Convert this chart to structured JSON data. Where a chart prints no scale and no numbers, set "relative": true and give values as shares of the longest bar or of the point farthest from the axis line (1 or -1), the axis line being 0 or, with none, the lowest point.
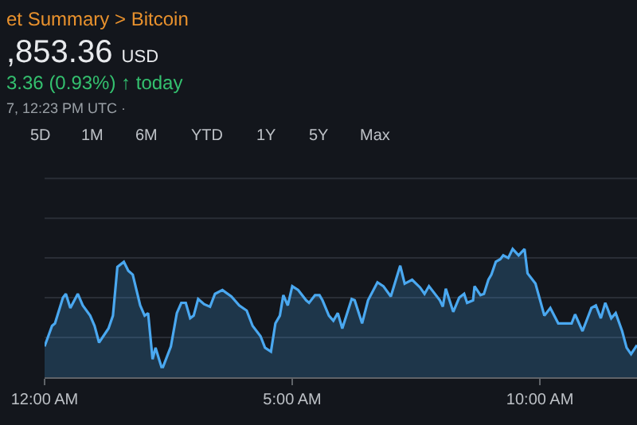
{
  "chart_data": {
    "type": "area",
    "title": "et Summary > Bitcoin",
    "relative": true,
    "annotations": [
      ",853.36 USD",
      "3.36 (0.93%) ↑ today",
      "7, 12:23 PM UTC ·",
      "5D",
      "1M",
      "6M",
      "YTD",
      "1Y",
      "5Y",
      "Max"
    ],
    "x": [
      0,
      0.15,
      0.21,
      0.37,
      0.43,
      0.52,
      0.67,
      0.77,
      0.92,
      1.01,
      1.1,
      1.29,
      1.38,
      1.47,
      1.6,
      1.69,
      1.78,
      1.93,
      2.02,
      2.09,
      2.18,
      2.24,
      2.36,
      2.39,
      2.55,
      2.67,
      2.76,
      2.85,
      2.94,
      3.01,
      3.1,
      3.22,
      3.34,
      3.44,
      3.59,
      3.77,
      3.93,
      4.08,
      4.2,
      4.36,
      4.45,
      4.57,
      4.66,
      4.75,
      4.82,
      4.91,
      5.0,
      5.12,
      5.28,
      5.34,
      5.46,
      5.55,
      5.61,
      5.74,
      5.83,
      5.92,
      6.01,
      6.2,
      6.26,
      6.41,
      6.53,
      6.72,
      6.84,
      6.99,
      7.18,
      7.27,
      7.42,
      7.58,
      7.67,
      7.76,
      7.98,
      8.04,
      8.1,
      8.25,
      8.37,
      8.47,
      8.53,
      8.65,
      8.68,
      8.8,
      8.87,
      8.96,
      9.02,
      9.11,
      9.2,
      9.26,
      9.36,
      9.45,
      9.57,
      9.69,
      9.75,
      9.91,
      10.09,
      10.21,
      10.37,
      10.64,
      10.71,
      10.86,
      11.04,
      11.13,
      11.23,
      11.32,
      11.44,
      11.53,
      11.66,
      11.75,
      11.84,
      11.96
    ],
    "series": [
      {
        "color": "#4aa8f0",
        "values": [
          0.24,
          0.4,
          0.42,
          0.62,
          0.65,
          0.54,
          0.65,
          0.56,
          0.48,
          0.4,
          0.27,
          0.38,
          0.48,
          0.86,
          0.9,
          0.83,
          0.8,
          0.56,
          0.48,
          0.5,
          0.14,
          0.23,
          0.08,
          0.08,
          0.24,
          0.5,
          0.58,
          0.58,
          0.46,
          0.48,
          0.61,
          0.57,
          0.55,
          0.65,
          0.68,
          0.63,
          0.56,
          0.52,
          0.4,
          0.32,
          0.23,
          0.2,
          0.42,
          0.48,
          0.64,
          0.56,
          0.71,
          0.68,
          0.6,
          0.58,
          0.64,
          0.64,
          0.6,
          0.48,
          0.44,
          0.5,
          0.38,
          0.61,
          0.6,
          0.42,
          0.6,
          0.74,
          0.71,
          0.63,
          0.87,
          0.73,
          0.76,
          0.7,
          0.65,
          0.71,
          0.6,
          0.55,
          0.69,
          0.51,
          0.62,
          0.65,
          0.58,
          0.6,
          0.71,
          0.64,
          0.65,
          0.76,
          0.8,
          0.9,
          0.92,
          0.95,
          0.93,
          1.0,
          0.95,
          1.0,
          0.81,
          0.73,
          0.48,
          0.54,
          0.42,
          0.42,
          0.49,
          0.36,
          0.54,
          0.56,
          0.46,
          0.58,
          0.46,
          0.5,
          0.36,
          0.23,
          0.18,
          0.25
        ]
      }
    ],
    "xlim": [
      0,
      11.96
    ],
    "xticks": [
      {
        "value": 0,
        "label": "12:00 AM"
      },
      {
        "value": 5,
        "label": "5:00 AM"
      },
      {
        "value": 10,
        "label": "10:00 AM"
      }
    ],
    "ref_lines": [
      {
        "axis": "y",
        "value": 0.31,
        "color": "#2a2e36"
      },
      {
        "axis": "y",
        "value": 0.62,
        "color": "#2a2e36"
      },
      {
        "axis": "y",
        "value": 0.93,
        "color": "#2a2e36"
      },
      {
        "axis": "y",
        "value": 1.24,
        "color": "#2a2e36"
      },
      {
        "axis": "y",
        "value": 1.55,
        "color": "#2a2e36"
      }
    ]
  }
}
